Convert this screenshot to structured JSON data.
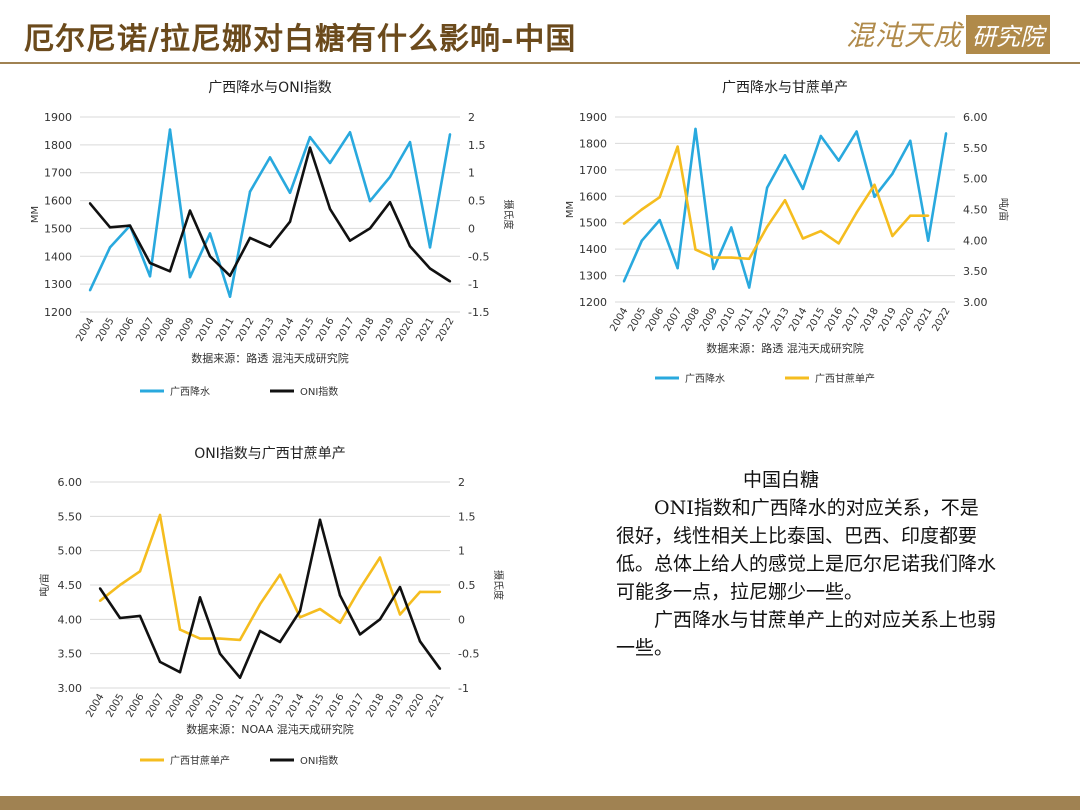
{
  "header": {
    "title": "厄尔尼诺/拉尼娜对白糖有什么影响-中国",
    "logo_text": "混沌天成",
    "logo_box": "研究院"
  },
  "colors": {
    "blue": "#29a9de",
    "black": "#111111",
    "yellow": "#f5bd1f",
    "accent": "#a08252"
  },
  "chart_data": [
    {
      "type": "line",
      "title": "广西降水与ONI指数",
      "ylabel": "MM",
      "y2label": "摄氏度",
      "source": "数据来源：路透 混沌天成研究院",
      "x": [
        "2004",
        "2005",
        "2006",
        "2007",
        "2008",
        "2009",
        "2010",
        "2011",
        "2012",
        "2013",
        "2014",
        "2015",
        "2016",
        "2017",
        "2018",
        "2019",
        "2020",
        "2021",
        "2022"
      ],
      "ylim": [
        1200,
        1900
      ],
      "yticks": [
        "1200",
        "1300",
        "1400",
        "1500",
        "1600",
        "1700",
        "1800",
        "1900"
      ],
      "y2lim": [
        -1.5,
        2
      ],
      "y2ticks": [
        "-1.5",
        "-1",
        "-0.5",
        "0",
        "0.5",
        "1",
        "1.5",
        "2"
      ],
      "series": [
        {
          "name": "广西降水",
          "axis": "left",
          "color": "#29a9de",
          "values": [
            1278,
            1432,
            1510,
            1328,
            1855,
            1325,
            1482,
            1255,
            1632,
            1755,
            1628,
            1828,
            1735,
            1845,
            1598,
            1685,
            1810,
            1432,
            1838
          ]
        },
        {
          "name": "ONI指数",
          "axis": "right",
          "color": "#111111",
          "values": [
            0.45,
            0.02,
            0.05,
            -0.62,
            -0.77,
            0.32,
            -0.5,
            -0.85,
            -0.17,
            -0.33,
            0.12,
            1.45,
            0.35,
            -0.22,
            0.0,
            0.47,
            -0.32,
            -0.72,
            -0.95
          ]
        }
      ]
    },
    {
      "type": "line",
      "title": "广西降水与甘蔗单产",
      "ylabel": "MM",
      "y2label": "吨/亩",
      "source": "数据来源：路透 混沌天成研究院",
      "x": [
        "2004",
        "2005",
        "2006",
        "2007",
        "2008",
        "2009",
        "2010",
        "2011",
        "2012",
        "2013",
        "2014",
        "2015",
        "2016",
        "2017",
        "2018",
        "2019",
        "2020",
        "2021",
        "2022"
      ],
      "ylim": [
        1200,
        1900
      ],
      "yticks": [
        "1200",
        "1300",
        "1400",
        "1500",
        "1600",
        "1700",
        "1800",
        "1900"
      ],
      "y2lim": [
        3.0,
        6.0
      ],
      "y2ticks": [
        "3.00",
        "3.50",
        "4.00",
        "4.50",
        "5.00",
        "5.50",
        "6.00"
      ],
      "series": [
        {
          "name": "广西降水",
          "axis": "left",
          "color": "#29a9de",
          "values": [
            1278,
            1432,
            1510,
            1328,
            1855,
            1325,
            1482,
            1255,
            1632,
            1755,
            1628,
            1828,
            1735,
            1845,
            1598,
            1685,
            1810,
            1432,
            1838
          ]
        },
        {
          "name": "广西甘蔗单产",
          "axis": "right",
          "color": "#f5bd1f",
          "values": [
            4.27,
            4.5,
            4.7,
            5.52,
            3.85,
            3.72,
            3.72,
            3.7,
            4.22,
            4.65,
            4.03,
            4.15,
            3.95,
            4.45,
            4.9,
            4.07,
            4.4,
            4.4,
            null
          ]
        }
      ]
    },
    {
      "type": "line",
      "title": "ONI指数与广西甘蔗单产",
      "ylabel": "吨/亩",
      "y2label": "摄氏度",
      "source": "数据来源：NOAA 混沌天成研究院",
      "x": [
        "2004",
        "2005",
        "2006",
        "2007",
        "2008",
        "2009",
        "2010",
        "2011",
        "2012",
        "2013",
        "2014",
        "2015",
        "2016",
        "2017",
        "2018",
        "2019",
        "2020",
        "2021"
      ],
      "ylim": [
        3.0,
        6.0
      ],
      "yticks": [
        "3.00",
        "3.50",
        "4.00",
        "4.50",
        "5.00",
        "5.50",
        "6.00"
      ],
      "y2lim": [
        -1,
        2
      ],
      "y2ticks": [
        "-1",
        "-0.5",
        "0",
        "0.5",
        "1",
        "1.5",
        "2"
      ],
      "series": [
        {
          "name": "广西甘蔗单产",
          "axis": "left",
          "color": "#f5bd1f",
          "values": [
            4.27,
            4.5,
            4.7,
            5.52,
            3.85,
            3.72,
            3.72,
            3.7,
            4.22,
            4.65,
            4.03,
            4.15,
            3.95,
            4.45,
            4.9,
            4.07,
            4.4,
            4.4
          ]
        },
        {
          "name": "ONI指数",
          "axis": "right",
          "color": "#111111",
          "values": [
            0.45,
            0.02,
            0.05,
            -0.62,
            -0.77,
            0.32,
            -0.5,
            -0.85,
            -0.17,
            -0.33,
            0.12,
            1.45,
            0.35,
            -0.22,
            0.0,
            0.47,
            -0.32,
            -0.72
          ]
        }
      ]
    }
  ],
  "note": {
    "title": "中国白糖",
    "paragraphs": [
      "　　ONI指数和广西降水的对应关系，不是很好，线性相关上比泰国、巴西、印度都要低。总体上给人的感觉上是厄尔尼诺我们降水可能多一点，拉尼娜少一些。",
      "　　广西降水与甘蔗单产上的对应关系上也弱一些。"
    ]
  }
}
